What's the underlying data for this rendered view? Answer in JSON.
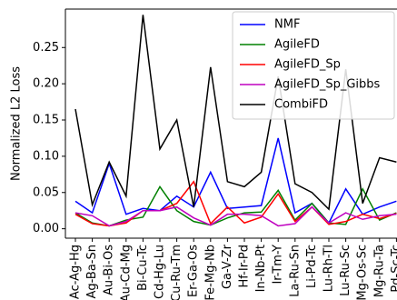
{
  "chart_data": {
    "type": "line",
    "y_label": "Normalized L2 Loss",
    "categories": [
      "Ac-Ag-Hg",
      "Ag-Ba-Sn",
      "Au-Bi-Os",
      "Au-Cd-Mg",
      "Bi-Cu-Tc",
      "Cd-Hg-Lu",
      "Cu-Ru-Tm",
      "Er-Ga-Os",
      "Fe-Mg-Nb",
      "Ga-V-Zr",
      "Hf-Ir-Pd",
      "In-Nb-Pt",
      "Ir-Tm-Y",
      "La-Ru-Sn",
      "Li-Pd-Tc",
      "Lu-Rh-Tl",
      "Lu-Ru-Sc",
      "Mg-Os-Sc",
      "Mg-Ru-Ta",
      "Pd-Sc-Tc"
    ],
    "series": [
      {
        "name": "NMF",
        "color": "#0000ff",
        "values": [
          0.038,
          0.022,
          0.09,
          0.02,
          0.028,
          0.025,
          0.045,
          0.03,
          0.078,
          0.028,
          0.03,
          0.032,
          0.125,
          0.022,
          0.035,
          0.008,
          0.055,
          0.02,
          0.03,
          0.038
        ]
      },
      {
        "name": "AgileFD",
        "color": "#008000",
        "values": [
          0.022,
          0.008,
          0.004,
          0.012,
          0.016,
          0.058,
          0.025,
          0.01,
          0.005,
          0.015,
          0.022,
          0.023,
          0.053,
          0.012,
          0.035,
          0.008,
          0.006,
          0.055,
          0.012,
          0.022
        ]
      },
      {
        "name": "AgileFD_Sp",
        "color": "#ff0000",
        "values": [
          0.02,
          0.007,
          0.004,
          0.008,
          0.025,
          0.025,
          0.035,
          0.065,
          0.007,
          0.03,
          0.008,
          0.016,
          0.048,
          0.01,
          0.03,
          0.006,
          0.01,
          0.02,
          0.014,
          0.021
        ]
      },
      {
        "name": "AgileFD_Sp_Gibbs",
        "color": "#bf00bf",
        "values": [
          0.022,
          0.018,
          0.004,
          0.01,
          0.025,
          0.025,
          0.03,
          0.015,
          0.005,
          0.02,
          0.02,
          0.018,
          0.004,
          0.007,
          0.03,
          0.008,
          0.022,
          0.013,
          0.018,
          0.02
        ]
      },
      {
        "name": "CombiFD",
        "color": "#000000",
        "values": [
          0.165,
          0.033,
          0.092,
          0.045,
          0.295,
          0.11,
          0.15,
          0.03,
          0.223,
          0.065,
          0.058,
          0.078,
          0.21,
          0.062,
          0.05,
          0.027,
          0.22,
          0.035,
          0.098,
          0.092
        ]
      }
    ],
    "ylim": [
      -0.013,
      0.303
    ],
    "yticks": [
      {
        "value": 0,
        "label": "0.00"
      },
      {
        "value": 0.05,
        "label": "0.05"
      },
      {
        "value": 0.1,
        "label": "0.10"
      },
      {
        "value": 0.15,
        "label": "0.15"
      },
      {
        "value": 0.2,
        "label": "0.20"
      },
      {
        "value": 0.25,
        "label": "0.25"
      }
    ],
    "legend": "upper right"
  }
}
